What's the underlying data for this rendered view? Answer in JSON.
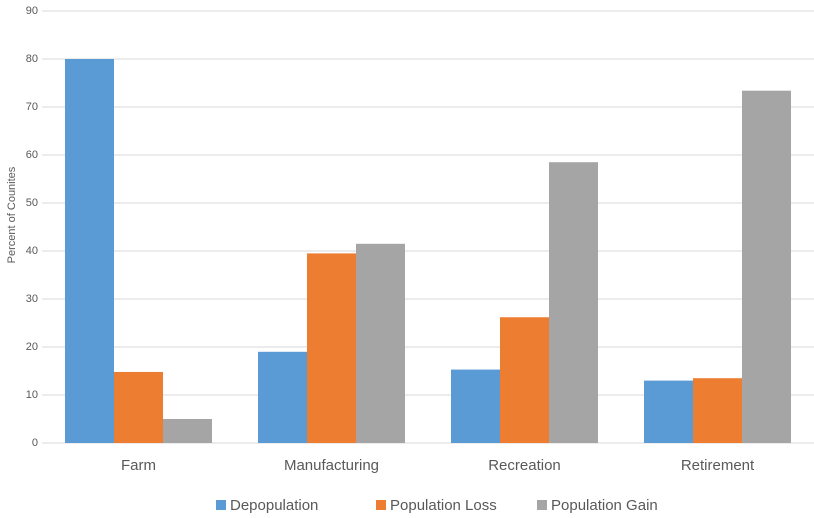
{
  "chart_data": {
    "type": "bar",
    "y_label": "Percent of Counites",
    "categories": [
      "Farm",
      "Manufacturing",
      "Recreation",
      "Retirement"
    ],
    "series": [
      {
        "name": "Depopulation",
        "color": "#5b9bd5",
        "values": [
          80,
          19,
          15.3,
          13
        ]
      },
      {
        "name": "Population Loss",
        "color": "#ed7d31",
        "values": [
          14.8,
          39.5,
          26.2,
          13.5
        ]
      },
      {
        "name": "Population Gain",
        "color": "#a5a5a5",
        "values": [
          5,
          41.5,
          58.5,
          73.4
        ]
      }
    ],
    "ylim": [
      0,
      90
    ],
    "yticks": [
      0,
      10,
      20,
      30,
      40,
      50,
      60,
      70,
      80,
      90
    ],
    "grid": true,
    "legend": "bottom"
  }
}
